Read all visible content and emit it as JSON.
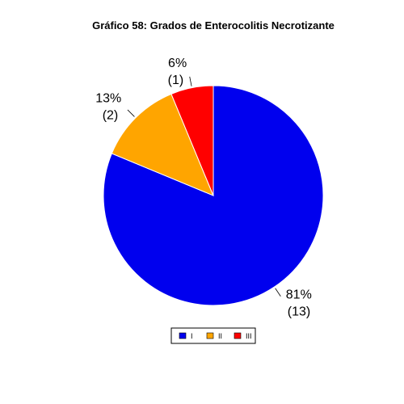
{
  "chart_data": {
    "type": "pie",
    "title": "Gráfico 58: Grados de Enterocolitis Necrotizante",
    "categories": [
      "I",
      "II",
      "III"
    ],
    "values": [
      13,
      2,
      1
    ],
    "labels": [
      {
        "percent": "81%",
        "count": "(13)"
      },
      {
        "percent": "13%",
        "count": "(2)"
      },
      {
        "percent": "6%",
        "count": "(1)"
      }
    ],
    "colors": [
      "#0000ee",
      "#ffa500",
      "#ff0000"
    ],
    "legend_position": "bottom"
  }
}
